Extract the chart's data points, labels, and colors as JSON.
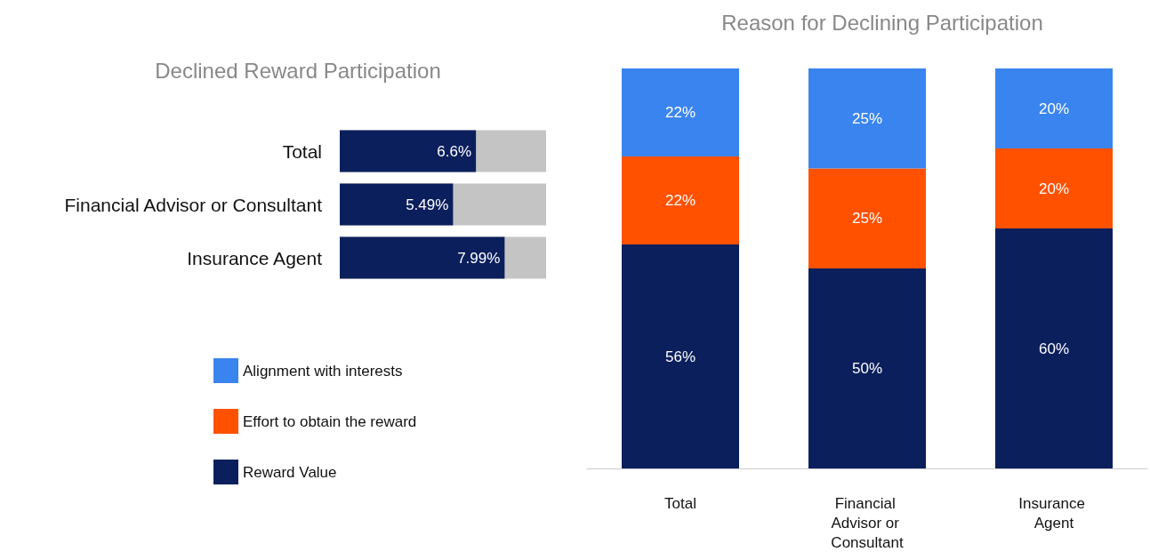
{
  "chart_data": [
    {
      "type": "bar",
      "title": "Declined Reward Participation",
      "orientation": "horizontal",
      "categories": [
        "Total",
        "Financial Advisor or Consultant",
        "Insurance Agent"
      ],
      "values": [
        6.6,
        5.49,
        7.99
      ],
      "value_labels": [
        "6.6%",
        "5.49%",
        "7.99%"
      ],
      "color": "#0b1f5c",
      "xlim": [
        0,
        10
      ]
    },
    {
      "type": "bar",
      "title": "Reason for Declining Participation",
      "categories": [
        "Total",
        "Financial Advisor or Consultant",
        "Insurance Agent"
      ],
      "stacked": true,
      "legend": "left",
      "series": [
        {
          "name": "Reward Value",
          "color": "#0b1f5c",
          "values": [
            56,
            50,
            60
          ],
          "value_labels": [
            "56%",
            "50%",
            "60%"
          ]
        },
        {
          "name": "Effort to obtain the reward",
          "color": "#ff5100",
          "values": [
            22,
            25,
            20
          ],
          "value_labels": [
            "22%",
            "25%",
            "20%"
          ]
        },
        {
          "name": "Alignment with interests",
          "color": "#3a84ef",
          "values": [
            22,
            25,
            20
          ],
          "value_labels": [
            "22%",
            "25%",
            "20%"
          ]
        }
      ]
    }
  ]
}
